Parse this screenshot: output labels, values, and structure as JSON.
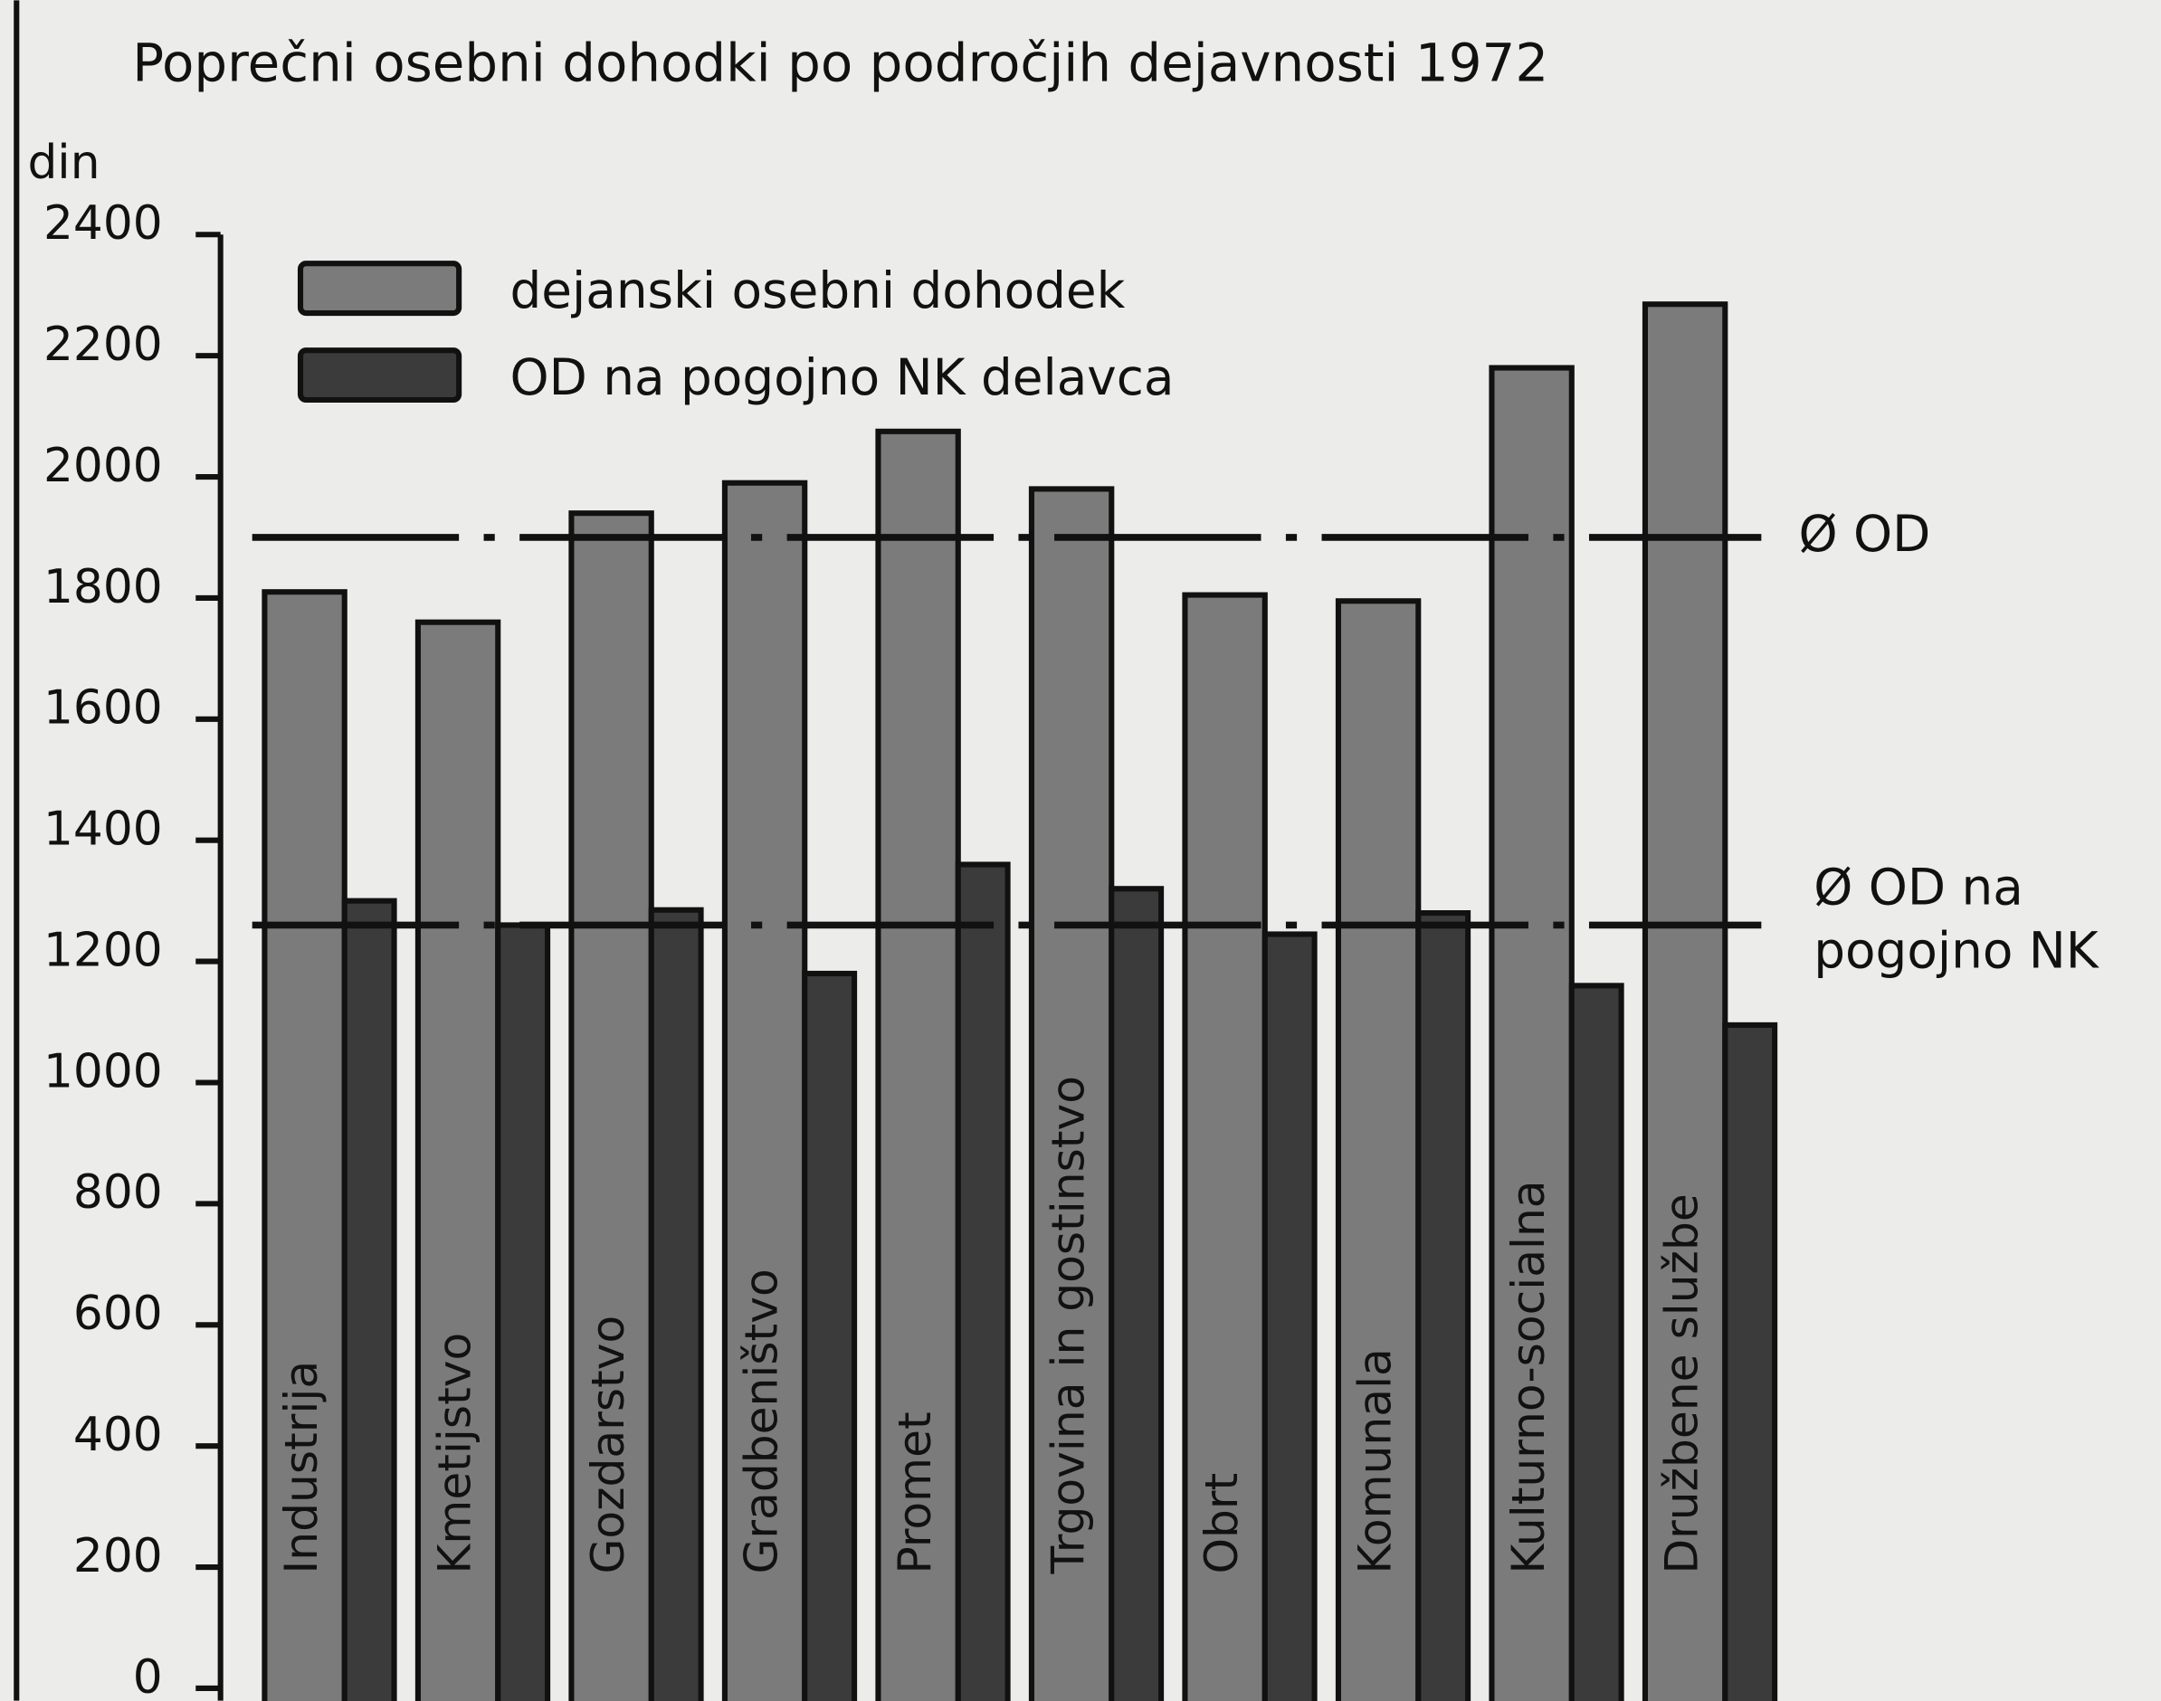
{
  "chart_data": {
    "type": "bar",
    "title": "Poprečni osebni dohodki po področjih dejavnosti 1972",
    "y_label": "din",
    "categories": [
      "Industrija",
      "Kmetijstvo",
      "Gozdarstvo",
      "Gradbeništvo",
      "Promet",
      "Trgovina in gostinstvo",
      "Obrt",
      "Komunala",
      "Kulturno-socialna",
      "Družbene službe"
    ],
    "series": [
      {
        "name": "dejanski osebni dohodek",
        "color": "#7b7b7b",
        "values": [
          1810,
          1760,
          1940,
          1990,
          2075,
          1980,
          1805,
          1795,
          2180,
          2285
        ]
      },
      {
        "name": "OD na pogojno NK delavca",
        "color": "#3b3b3b",
        "values": [
          1300,
          1260,
          1285,
          1180,
          1360,
          1320,
          1245,
          1280,
          1160,
          1095
        ]
      }
    ],
    "reference_lines": [
      {
        "value": 1900,
        "label": [
          "Ø OD"
        ]
      },
      {
        "value": 1260,
        "label": [
          "Ø OD na",
          "pogojno NK"
        ]
      }
    ],
    "ylim": [
      0,
      2400
    ],
    "yticks": [
      0,
      200,
      400,
      600,
      800,
      1000,
      1200,
      1400,
      1600,
      1800,
      2000,
      2200,
      2400
    ],
    "grid": false,
    "legend": "top-left"
  }
}
